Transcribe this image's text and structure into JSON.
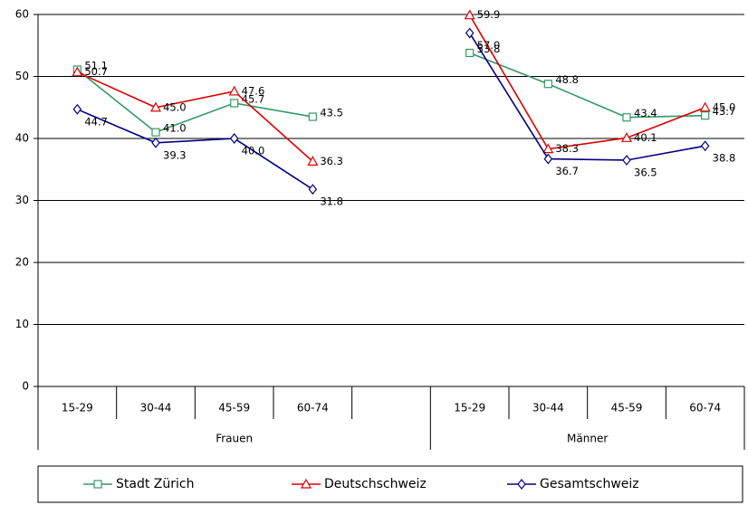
{
  "chart_data": {
    "type": "line",
    "categories": [
      "15-29",
      "30-44",
      "45-59",
      "60-74",
      null,
      "15-29",
      "30-44",
      "45-59",
      "60-74"
    ],
    "groups": [
      "Frauen",
      "Männer"
    ],
    "ylim": [
      0,
      60
    ],
    "yticks": [
      0,
      10,
      20,
      30,
      40,
      50,
      60
    ],
    "grid": true,
    "legend": "bottom",
    "series": [
      {
        "name": "Stadt Zürich",
        "color": "#339966",
        "marker": "square",
        "values": [
          51.1,
          41.0,
          45.7,
          43.5,
          null,
          53.8,
          48.8,
          43.4,
          43.7
        ],
        "value_labels": [
          "51.1",
          "41.0",
          "45.7",
          "43.5",
          null,
          "53.8",
          "48.8",
          "43.4",
          "43.7"
        ]
      },
      {
        "name": "Deutschschweiz",
        "color": "#dd0000",
        "marker": "triangle",
        "values": [
          50.7,
          45.0,
          47.6,
          36.3,
          null,
          59.9,
          38.3,
          40.1,
          45.0
        ],
        "value_labels": [
          "50.7",
          "45.0",
          "47.6",
          "36.3",
          null,
          "59.9",
          "38.3",
          "40.1",
          "45.0"
        ]
      },
      {
        "name": "Gesamtschweiz",
        "color": "#000080",
        "marker": "diamond",
        "values": [
          44.7,
          39.3,
          40.0,
          31.8,
          null,
          57.0,
          36.7,
          36.5,
          38.8
        ],
        "value_labels": [
          "44.7",
          "39.3",
          "40.0",
          "31.8",
          null,
          "57.0",
          "36.7",
          "36.5",
          "38.8"
        ]
      }
    ]
  }
}
